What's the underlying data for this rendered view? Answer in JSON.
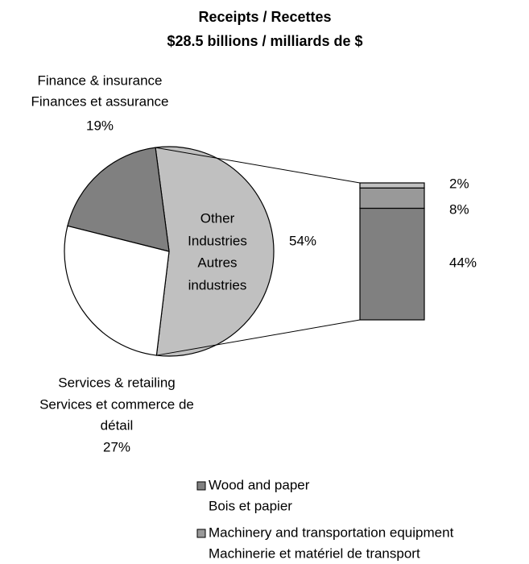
{
  "chart_data": {
    "type": "pie-of-bar",
    "title": [
      "Receipts / Recettes",
      "$28.5 billions / milliards de $"
    ],
    "pie": {
      "labels": [
        [
          "Other",
          "Industries",
          "Autres",
          "industries"
        ],
        [
          "Services & retailing",
          "Services et commerce de",
          "détail"
        ],
        [
          "Finance & insurance",
          "Finances et assurance"
        ]
      ],
      "values": [
        54,
        27,
        19
      ],
      "value_labels": [
        "54%",
        "27%",
        "19%"
      ],
      "colors": [
        "#c0c0c0",
        "#ffffff",
        "#808080"
      ]
    },
    "bar": {
      "labels": [
        [
          "Wood and paper",
          "Bois et papier"
        ],
        [
          "Machinery and transportation equipment",
          "Machinerie et matériel de transport"
        ],
        null
      ],
      "values": [
        44,
        8,
        2
      ],
      "value_labels": [
        "44%",
        "8%",
        "2%"
      ],
      "colors": [
        "#808080",
        "#999999",
        "#c0c0c0"
      ]
    }
  }
}
